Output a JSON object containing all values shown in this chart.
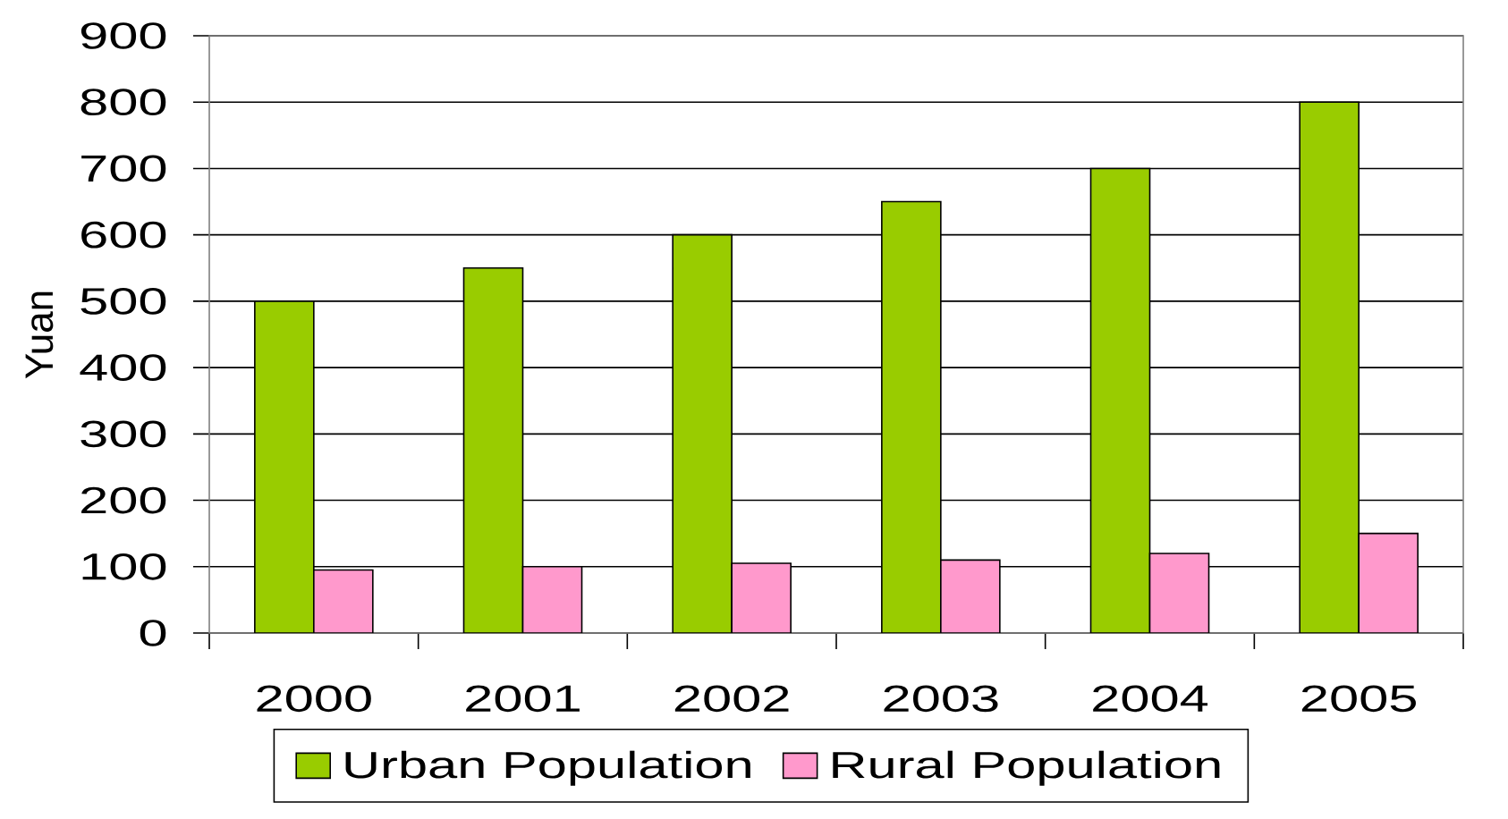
{
  "chart_data": {
    "type": "bar",
    "ylabel": "Yuan",
    "categories": [
      "2000",
      "2001",
      "2002",
      "2003",
      "2004",
      "2005"
    ],
    "series": [
      {
        "name": "Urban Population",
        "color": "#99cc00",
        "values": [
          500,
          550,
          600,
          650,
          700,
          800
        ]
      },
      {
        "name": "Rural Population",
        "color": "#ff99cc",
        "values": [
          95,
          100,
          105,
          110,
          120,
          150
        ]
      }
    ],
    "ylim": [
      0,
      900
    ],
    "yticks": [
      0,
      100,
      200,
      300,
      400,
      500,
      600,
      700,
      800,
      900
    ],
    "grid": "y",
    "legend": "bottom"
  }
}
